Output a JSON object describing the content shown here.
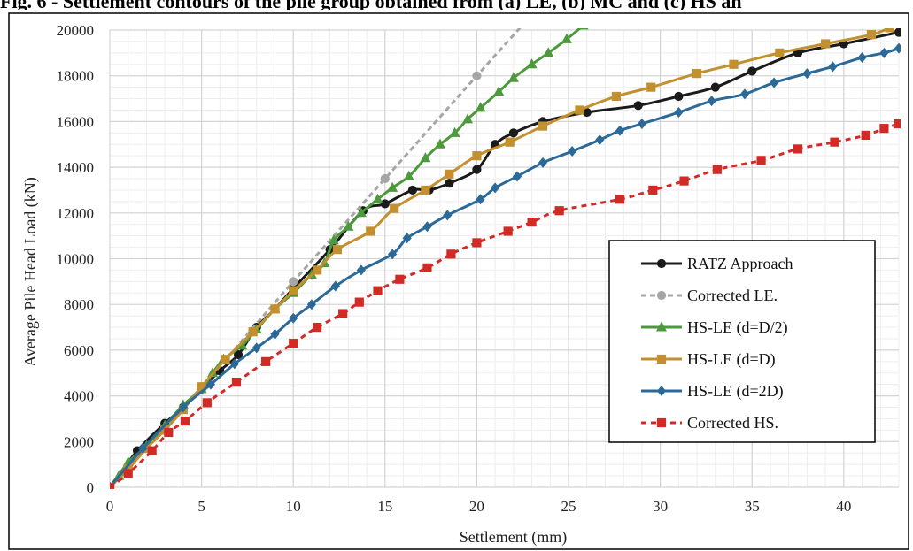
{
  "caption": "Fig. 6 - Settlement contours of the pile group obtained from (a) LE, (b) MC and (c) HS an",
  "chart_data": {
    "type": "line",
    "xlabel": "Settlement (mm)",
    "ylabel": "Average Pile Head Load (kN)",
    "xlim": [
      0,
      43
    ],
    "ylim": [
      0,
      20000
    ],
    "xticks": [
      0,
      5,
      10,
      15,
      20,
      25,
      30,
      35,
      40
    ],
    "yticks": [
      0,
      2000,
      4000,
      6000,
      8000,
      10000,
      12000,
      14000,
      16000,
      18000,
      20000
    ],
    "grid": true,
    "legend_position": "bottom-right",
    "series": [
      {
        "name": "RATZ Approach",
        "color": "#1a1a1a",
        "marker": "circle",
        "dash": "solid",
        "points": [
          [
            0,
            0
          ],
          [
            1.5,
            1600
          ],
          [
            3,
            2800
          ],
          [
            4,
            3500
          ],
          [
            5,
            4300
          ],
          [
            6,
            5100
          ],
          [
            7,
            5800
          ],
          [
            8,
            7000
          ],
          [
            9,
            7800
          ],
          [
            10,
            8700
          ],
          [
            12,
            10400
          ],
          [
            13.8,
            12100
          ],
          [
            15,
            12400
          ],
          [
            16.5,
            13000
          ],
          [
            17.4,
            13000
          ],
          [
            18.5,
            13300
          ],
          [
            20,
            13900
          ],
          [
            21,
            15000
          ],
          [
            22,
            15500
          ],
          [
            23.6,
            16000
          ],
          [
            26,
            16400
          ],
          [
            28.8,
            16700
          ],
          [
            31,
            17100
          ],
          [
            33,
            17500
          ],
          [
            35,
            18200
          ],
          [
            37.5,
            19000
          ],
          [
            40,
            19400
          ],
          [
            43,
            19900
          ]
        ]
      },
      {
        "name": "Corrected LE.",
        "color": "#a6a6a6",
        "marker": "circle",
        "dash": "6,4",
        "points": [
          [
            0,
            0
          ],
          [
            5,
            4400
          ],
          [
            10,
            9000
          ],
          [
            15,
            13500
          ],
          [
            20,
            18000
          ],
          [
            22.7,
            20400
          ]
        ]
      },
      {
        "name": "HS-LE (d=D/2)",
        "color": "#4c9a3c",
        "marker": "triangle",
        "dash": "solid",
        "points": [
          [
            0,
            0
          ],
          [
            0.5,
            500
          ],
          [
            1,
            1100
          ],
          [
            2,
            1800
          ],
          [
            3,
            2700
          ],
          [
            4,
            3600
          ],
          [
            5,
            4300
          ],
          [
            5.6,
            5000
          ],
          [
            6.2,
            5600
          ],
          [
            7.2,
            6200
          ],
          [
            8,
            6900
          ],
          [
            9,
            7800
          ],
          [
            10,
            8500
          ],
          [
            11,
            9300
          ],
          [
            11.7,
            9800
          ],
          [
            12.2,
            10800
          ],
          [
            13,
            11400
          ],
          [
            13.7,
            12000
          ],
          [
            14.6,
            12600
          ],
          [
            15.4,
            13100
          ],
          [
            16.3,
            13600
          ],
          [
            17.2,
            14400
          ],
          [
            18,
            15000
          ],
          [
            18.8,
            15500
          ],
          [
            19.5,
            16100
          ],
          [
            20.2,
            16600
          ],
          [
            21.2,
            17300
          ],
          [
            22,
            17900
          ],
          [
            23,
            18500
          ],
          [
            23.9,
            19000
          ],
          [
            24.9,
            19600
          ],
          [
            25.8,
            20200
          ]
        ]
      },
      {
        "name": "HS-LE (d=D)",
        "color": "#c3902f",
        "marker": "square",
        "dash": "solid",
        "points": [
          [
            0,
            0
          ],
          [
            1,
            800
          ],
          [
            2,
            1700
          ],
          [
            3,
            2500
          ],
          [
            4,
            3400
          ],
          [
            5,
            4400
          ],
          [
            6.3,
            5600
          ],
          [
            7.8,
            6800
          ],
          [
            9,
            7800
          ],
          [
            10,
            8600
          ],
          [
            11.3,
            9500
          ],
          [
            12.4,
            10400
          ],
          [
            14.2,
            11200
          ],
          [
            15.5,
            12200
          ],
          [
            17.2,
            13000
          ],
          [
            18.5,
            13700
          ],
          [
            20,
            14500
          ],
          [
            21.8,
            15100
          ],
          [
            23.6,
            15800
          ],
          [
            25.6,
            16500
          ],
          [
            27.6,
            17100
          ],
          [
            29.5,
            17500
          ],
          [
            32,
            18100
          ],
          [
            34,
            18500
          ],
          [
            36.5,
            19000
          ],
          [
            39,
            19400
          ],
          [
            41.5,
            19800
          ],
          [
            42.5,
            20100
          ]
        ]
      },
      {
        "name": "HS-LE (d=2D)",
        "color": "#2b6a98",
        "marker": "diamond",
        "dash": "solid",
        "points": [
          [
            0,
            0
          ],
          [
            1.8,
            1700
          ],
          [
            4,
            3500
          ],
          [
            5.5,
            4500
          ],
          [
            6.8,
            5400
          ],
          [
            8,
            6100
          ],
          [
            9,
            6700
          ],
          [
            10,
            7400
          ],
          [
            11,
            8000
          ],
          [
            12.3,
            8800
          ],
          [
            13.7,
            9500
          ],
          [
            15.4,
            10200
          ],
          [
            16.2,
            10900
          ],
          [
            17.3,
            11400
          ],
          [
            18.4,
            11900
          ],
          [
            20.2,
            12600
          ],
          [
            21,
            13100
          ],
          [
            22.2,
            13600
          ],
          [
            23.6,
            14200
          ],
          [
            25.2,
            14700
          ],
          [
            26.7,
            15200
          ],
          [
            27.8,
            15600
          ],
          [
            29,
            15900
          ],
          [
            31,
            16400
          ],
          [
            32.8,
            16900
          ],
          [
            34.6,
            17200
          ],
          [
            36.2,
            17700
          ],
          [
            38,
            18100
          ],
          [
            39.4,
            18400
          ],
          [
            41,
            18800
          ],
          [
            42.2,
            19000
          ],
          [
            43,
            19200
          ]
        ]
      },
      {
        "name": "Corrected HS.",
        "color": "#d22b26",
        "marker": "square",
        "dash": "6,5",
        "points": [
          [
            0,
            0
          ],
          [
            1,
            600
          ],
          [
            2.3,
            1600
          ],
          [
            3.2,
            2400
          ],
          [
            4.1,
            2900
          ],
          [
            5.3,
            3700
          ],
          [
            6.9,
            4600
          ],
          [
            8.5,
            5500
          ],
          [
            10,
            6300
          ],
          [
            11.3,
            7000
          ],
          [
            12.7,
            7600
          ],
          [
            13.6,
            8100
          ],
          [
            14.6,
            8600
          ],
          [
            15.8,
            9100
          ],
          [
            17.3,
            9600
          ],
          [
            18.6,
            10200
          ],
          [
            20,
            10700
          ],
          [
            21.7,
            11200
          ],
          [
            23,
            11600
          ],
          [
            24.5,
            12100
          ],
          [
            27.8,
            12600
          ],
          [
            29.6,
            13000
          ],
          [
            31.3,
            13400
          ],
          [
            33.1,
            13900
          ],
          [
            35.5,
            14300
          ],
          [
            37.5,
            14800
          ],
          [
            39.5,
            15100
          ],
          [
            41.2,
            15400
          ],
          [
            42.2,
            15700
          ],
          [
            43,
            15900
          ]
        ]
      }
    ]
  }
}
